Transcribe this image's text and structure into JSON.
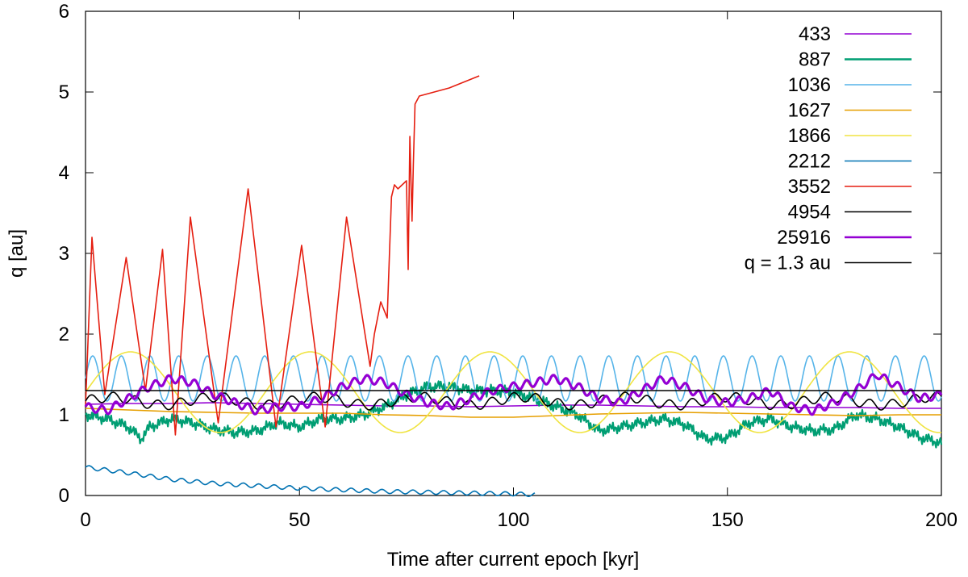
{
  "chart_data": {
    "type": "line",
    "title": "",
    "xlabel": "Time after current epoch [kyr]",
    "ylabel": "q [au]",
    "xlim": [
      0,
      200
    ],
    "ylim": [
      0,
      6
    ],
    "xticks": [
      "0",
      "50",
      "100",
      "150",
      "200"
    ],
    "yticks": [
      "0",
      "1",
      "2",
      "3",
      "4",
      "5",
      "6"
    ],
    "grid": false,
    "legend_position": "top-right",
    "series": [
      {
        "name": "433",
        "color": "#9400d3",
        "x": [
          0,
          10,
          20,
          30,
          40,
          50,
          60,
          70,
          80,
          90,
          100,
          110,
          120,
          130,
          140,
          150,
          160,
          170,
          180,
          190,
          200
        ],
        "y": [
          1.13,
          1.14,
          1.14,
          1.15,
          1.14,
          1.13,
          1.12,
          1.11,
          1.11,
          1.1,
          1.11,
          1.12,
          1.12,
          1.11,
          1.1,
          1.1,
          1.09,
          1.09,
          1.09,
          1.08,
          1.08
        ]
      },
      {
        "name": "887",
        "color": "#009e73",
        "x": [
          0,
          5,
          10,
          13,
          15,
          20,
          25,
          30,
          35,
          40,
          45,
          50,
          55,
          60,
          65,
          70,
          75,
          80,
          85,
          90,
          95,
          100,
          105,
          110,
          115,
          120,
          125,
          130,
          135,
          140,
          145,
          150,
          155,
          160,
          165,
          170,
          175,
          180,
          185,
          190,
          195,
          200
        ],
        "y": [
          1.0,
          0.95,
          0.85,
          0.7,
          0.85,
          0.95,
          0.9,
          0.82,
          0.78,
          0.8,
          0.9,
          0.85,
          0.95,
          0.95,
          1.0,
          1.1,
          1.25,
          1.35,
          1.35,
          1.3,
          1.3,
          1.28,
          1.2,
          1.1,
          1.0,
          0.8,
          0.85,
          0.9,
          0.95,
          0.88,
          0.7,
          0.72,
          0.9,
          0.95,
          0.85,
          0.8,
          0.82,
          1.0,
          0.95,
          0.85,
          0.72,
          0.65
        ]
      },
      {
        "name": "1036",
        "color": "#56b4e9",
        "x": [
          0,
          200
        ],
        "y": [
          1.45,
          1.45
        ],
        "amp": 0.28,
        "period": 6.7
      },
      {
        "name": "1627",
        "color": "#e69f00",
        "x": [
          0,
          10,
          20,
          30,
          40,
          50,
          60,
          70,
          80,
          90,
          100,
          110,
          120,
          130,
          140,
          150,
          160,
          170,
          180,
          190,
          200
        ],
        "y": [
          1.08,
          1.06,
          1.04,
          1.03,
          1.02,
          1.02,
          1.02,
          1.0,
          0.99,
          0.97,
          0.97,
          0.99,
          1.01,
          1.02,
          1.03,
          1.02,
          1.01,
          1.0,
          0.99,
          1.0,
          1.0
        ]
      },
      {
        "name": "1866",
        "color": "#f0e442",
        "x": [
          0,
          200
        ],
        "y": [
          1.28,
          1.28
        ],
        "amp": 0.5,
        "period": 42
      },
      {
        "name": "2212",
        "color": "#0072b2",
        "x": [
          0,
          10,
          20,
          30,
          40,
          50,
          60,
          70,
          80,
          90,
          100,
          105
        ],
        "y": [
          0.35,
          0.28,
          0.2,
          0.15,
          0.12,
          0.09,
          0.07,
          0.05,
          0.04,
          0.03,
          0.02,
          0.01
        ]
      },
      {
        "name": "3552",
        "color": "#e51e10",
        "x": [
          0,
          1.5,
          4.5,
          9.5,
          14,
          18,
          21,
          24.5,
          31,
          38,
          44.5,
          50.5,
          56,
          61,
          66.5,
          67.5,
          69,
          70.5,
          71.5,
          72.2,
          73,
          75,
          75.4,
          75.8,
          76.3,
          76.6,
          77,
          78,
          85,
          92
        ],
        "y": [
          1.1,
          3.2,
          1.25,
          2.95,
          1.3,
          3.05,
          0.75,
          3.45,
          0.9,
          3.8,
          0.85,
          3.1,
          0.85,
          3.45,
          1.6,
          2.0,
          2.4,
          2.2,
          3.7,
          3.85,
          3.8,
          3.9,
          2.8,
          4.45,
          3.4,
          4.1,
          4.85,
          4.95,
          5.05,
          5.2
        ]
      },
      {
        "name": "4954",
        "color": "#000000",
        "x": [
          0,
          200
        ],
        "y": [
          1.17,
          1.17
        ],
        "amp": 0.06,
        "period": 5.2,
        "amp2": 0.05,
        "period2": 24
      },
      {
        "name": "25916",
        "color": "#9400d3",
        "x": [
          0,
          5,
          10,
          15,
          20,
          25,
          30,
          35,
          40,
          45,
          50,
          55,
          60,
          65,
          70,
          75,
          80,
          85,
          90,
          95,
          100,
          105,
          110,
          115,
          120,
          125,
          130,
          135,
          140,
          145,
          150,
          155,
          160,
          165,
          170,
          175,
          180,
          185,
          190,
          195,
          200
        ],
        "y": [
          1.1,
          1.05,
          1.2,
          1.35,
          1.45,
          1.4,
          1.25,
          1.15,
          1.05,
          1.1,
          1.1,
          1.2,
          1.35,
          1.45,
          1.4,
          1.25,
          1.15,
          1.1,
          1.2,
          1.3,
          1.35,
          1.4,
          1.45,
          1.35,
          1.2,
          1.15,
          1.3,
          1.45,
          1.35,
          1.2,
          1.15,
          1.2,
          1.3,
          1.1,
          1.05,
          1.15,
          1.3,
          1.5,
          1.35,
          1.2,
          1.25
        ]
      },
      {
        "name": "q = 1.3 au",
        "color": "#000000",
        "x": [
          0,
          200
        ],
        "y": [
          1.3,
          1.3
        ]
      }
    ]
  }
}
